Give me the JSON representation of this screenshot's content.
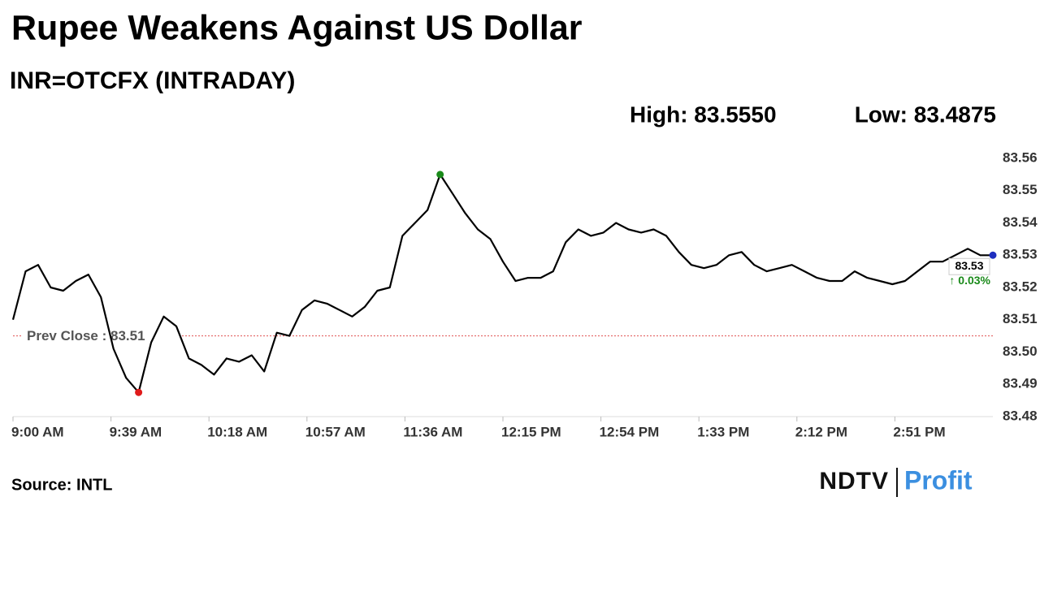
{
  "chart_data": {
    "type": "line",
    "title": "Rupee Weakens Against US Dollar",
    "subtitle": "INR=OTCFX (INTRADAY)",
    "high": {
      "value": 83.555,
      "label": "High: 83.5550"
    },
    "low": {
      "value": 83.4875,
      "label": "Low: 83.4875"
    },
    "prev_close": {
      "value": 83.505,
      "label": "Prev Close : 83.51"
    },
    "last_label": "83.53",
    "change_label": "↑ 0.03%",
    "source": "Source: INTL",
    "logo": [
      "NDTV",
      "Profit"
    ],
    "x": [
      "9:00 AM",
      "9:05 AM",
      "9:10 AM",
      "9:15 AM",
      "9:20 AM",
      "9:25 AM",
      "9:30 AM",
      "9:35 AM",
      "9:40 AM",
      "9:45 AM",
      "9:50 AM",
      "9:55 AM",
      "10:00 AM",
      "10:05 AM",
      "10:10 AM",
      "10:15 AM",
      "10:20 AM",
      "10:25 AM",
      "10:30 AM",
      "10:35 AM",
      "10:40 AM",
      "10:45 AM",
      "10:50 AM",
      "10:55 AM",
      "11:00 AM",
      "11:05 AM",
      "11:10 AM",
      "11:15 AM",
      "11:20 AM",
      "11:25 AM",
      "11:30 AM",
      "11:35 AM",
      "11:40 AM",
      "11:45 AM",
      "11:50 AM",
      "11:55 AM",
      "12:00 PM",
      "12:05 PM",
      "12:10 PM",
      "12:15 PM",
      "12:20 PM",
      "12:25 PM",
      "12:30 PM",
      "12:35 PM",
      "12:40 PM",
      "12:45 PM",
      "12:50 PM",
      "12:55 PM",
      "1:00 PM",
      "1:05 PM",
      "1:10 PM",
      "1:15 PM",
      "1:20 PM",
      "1:25 PM",
      "1:30 PM",
      "1:35 PM",
      "1:40 PM",
      "1:45 PM",
      "1:50 PM",
      "1:55 PM",
      "2:00 PM",
      "2:05 PM",
      "2:10 PM",
      "2:15 PM",
      "2:20 PM",
      "2:25 PM",
      "2:30 PM",
      "2:35 PM",
      "2:40 PM",
      "2:45 PM",
      "2:50 PM",
      "2:55 PM",
      "3:00 PM",
      "3:05 PM",
      "3:10 PM",
      "3:15 PM",
      "3:20 PM",
      "3:25 PM",
      "3:30 PM"
    ],
    "series": [
      {
        "name": "INR=OTCFX",
        "color": "#000000",
        "values": [
          83.51,
          83.525,
          83.527,
          83.52,
          83.519,
          83.522,
          83.524,
          83.517,
          83.501,
          83.492,
          83.4875,
          83.503,
          83.511,
          83.508,
          83.498,
          83.496,
          83.493,
          83.498,
          83.497,
          83.499,
          83.494,
          83.506,
          83.505,
          83.513,
          83.516,
          83.515,
          83.513,
          83.511,
          83.514,
          83.519,
          83.52,
          83.536,
          83.54,
          83.544,
          83.555,
          83.549,
          83.543,
          83.538,
          83.535,
          83.528,
          83.522,
          83.523,
          83.523,
          83.525,
          83.534,
          83.538,
          83.536,
          83.537,
          83.54,
          83.538,
          83.537,
          83.538,
          83.536,
          83.531,
          83.527,
          83.526,
          83.527,
          83.53,
          83.531,
          83.527,
          83.525,
          83.526,
          83.527,
          83.525,
          83.523,
          83.522,
          83.522,
          83.525,
          83.523,
          83.522,
          83.521,
          83.522,
          83.525,
          83.528,
          83.528,
          83.53,
          83.532,
          83.53,
          83.53
        ]
      }
    ],
    "xlim": [
      "9:00 AM",
      "3:30 PM"
    ],
    "xticks": [
      "9:00 AM",
      "9:39 AM",
      "10:18 AM",
      "10:57 AM",
      "11:36 AM",
      "12:15 PM",
      "12:54 PM",
      "1:33 PM",
      "2:12 PM",
      "2:51 PM"
    ],
    "ylim": [
      83.48,
      83.56
    ],
    "yticks": [
      83.48,
      83.49,
      {
        "value": 83.5,
        "label": "83.50"
      },
      83.51,
      83.52,
      83.53,
      83.54,
      83.55,
      83.56
    ],
    "grid": false,
    "high_color": "#1a8a1a",
    "low_color": "#e01b1b",
    "last_color": "#1f2fbf",
    "prev_close_color": "#e05050",
    "change_color": "#1a8a1a"
  }
}
